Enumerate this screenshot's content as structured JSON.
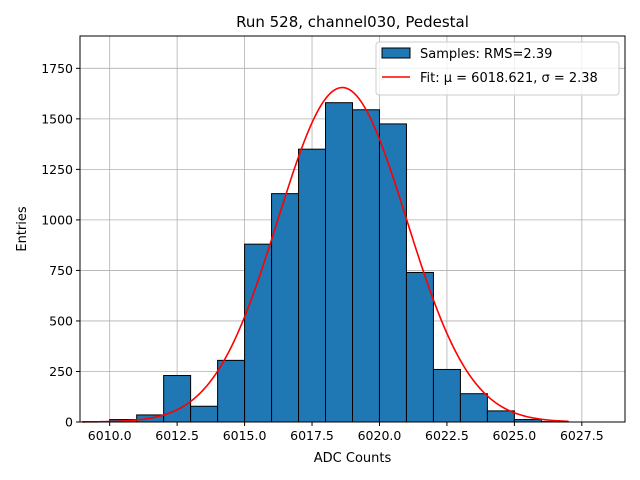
{
  "chart_data": {
    "type": "bar",
    "title": "Run 528, channel030, Pedestal",
    "xlabel": "ADC Counts",
    "ylabel": "Entries",
    "xlim": [
      6008.9,
      6029.1
    ],
    "ylim": [
      0,
      1910
    ],
    "xticks": [
      6010.0,
      6012.5,
      6015.0,
      6017.5,
      6020.0,
      6022.5,
      6025.0,
      6027.5
    ],
    "xtick_labels": [
      "6010.0",
      "6012.5",
      "6015.0",
      "6017.5",
      "6020.0",
      "6022.5",
      "6025.0",
      "6027.5"
    ],
    "yticks": [
      0,
      250,
      500,
      750,
      1000,
      1250,
      1500,
      1750
    ],
    "ytick_labels": [
      "0",
      "250",
      "500",
      "750",
      "1000",
      "1250",
      "1500",
      "1750"
    ],
    "grid": true,
    "legend_position": "top-right",
    "histogram": {
      "name": "Samples: RMS=2.39",
      "color": "#1f77b4",
      "edgecolor": "#000000",
      "bin_edges": [
        6009,
        6010,
        6011,
        6012,
        6013,
        6014,
        6015,
        6016,
        6017,
        6018,
        6019,
        6020,
        6021,
        6022,
        6023,
        6024,
        6025,
        6026,
        6027,
        6028,
        6029
      ],
      "counts": [
        2,
        12,
        35,
        230,
        78,
        305,
        880,
        1130,
        1350,
        1580,
        1545,
        1475,
        740,
        260,
        140,
        55,
        12,
        2,
        0,
        0
      ]
    },
    "fit": {
      "name": "Fit: μ = 6018.621, σ = 2.38",
      "color": "#ff0000",
      "mu": 6018.621,
      "sigma": 2.38,
      "amplitude": 1655,
      "x_range": [
        6009,
        6027
      ]
    }
  }
}
